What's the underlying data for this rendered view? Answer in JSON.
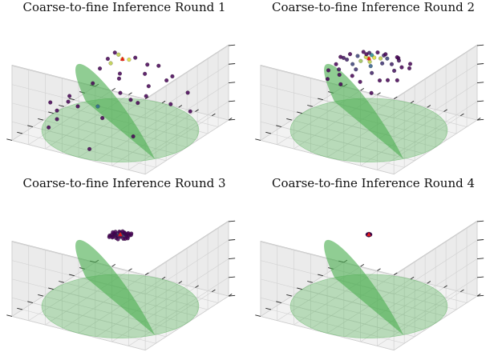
{
  "figure": {
    "colors": {
      "dome": "#4caf50",
      "low": "#440154",
      "mid": "#31688e",
      "teal": "#21918c",
      "high": "#fde725",
      "best": "#e31a1c"
    }
  },
  "chart_data": [
    {
      "type": "scatter",
      "title": "Coarse-to-fine Inference Round 1",
      "surface": "hemisphere",
      "grid": true,
      "points": [
        [
          -0.55,
          0.5,
          0.75,
          0.0
        ],
        [
          -0.2,
          0.55,
          0.82,
          0.0
        ],
        [
          0.15,
          0.6,
          0.78,
          0.0
        ],
        [
          0.45,
          0.5,
          0.7,
          0.0
        ],
        [
          0.6,
          0.2,
          0.72,
          0.0
        ],
        [
          0.55,
          -0.35,
          0.5,
          0.0
        ],
        [
          0.3,
          -0.6,
          0.4,
          0.0
        ],
        [
          -0.1,
          -0.7,
          0.35,
          0.0
        ],
        [
          -0.45,
          -0.5,
          0.45,
          0.0
        ],
        [
          -0.7,
          -0.2,
          0.55,
          0.0
        ],
        [
          -0.75,
          0.2,
          0.5,
          0.0
        ],
        [
          -0.35,
          0.2,
          0.9,
          0.0
        ],
        [
          0.25,
          0.25,
          0.88,
          0.0
        ],
        [
          0.1,
          -0.25,
          0.9,
          0.0
        ],
        [
          -0.25,
          -0.15,
          0.92,
          0.0
        ],
        [
          0.7,
          -0.05,
          0.2,
          0.0
        ],
        [
          0.4,
          0.8,
          0.3,
          0.0
        ],
        [
          -0.9,
          0.1,
          0.1,
          0.0
        ],
        [
          0.0,
          -0.95,
          0.05,
          0.0
        ],
        [
          -0.6,
          -0.7,
          0.1,
          0.0
        ],
        [
          0.8,
          -0.5,
          0.1,
          0.0
        ],
        [
          0.2,
          0.1,
          0.96,
          0.0
        ],
        [
          -0.05,
          0.4,
          0.9,
          0.0
        ],
        [
          0.05,
          0.1,
          0.99,
          0.95
        ],
        [
          -0.15,
          -0.05,
          0.98,
          0.9
        ],
        [
          0.15,
          -0.12,
          0.97,
          0.9
        ],
        [
          0.02,
          0.02,
          0.99,
          1.0
        ],
        [
          -0.3,
          0.45,
          0.6,
          0.0
        ],
        [
          0.35,
          -0.3,
          0.88,
          0.0
        ],
        [
          -0.65,
          0.6,
          0.3,
          0.0
        ],
        [
          0.5,
          0.7,
          0.5,
          0.0
        ],
        [
          -0.8,
          -0.45,
          0.35,
          0.0
        ],
        [
          0.1,
          -0.4,
          0.2,
          0.35
        ],
        [
          0.65,
          0.35,
          0.2,
          0.0
        ],
        [
          -0.4,
          -0.8,
          0.35,
          0.0
        ]
      ]
    },
    {
      "type": "scatter",
      "title": "Coarse-to-fine Inference Round 2",
      "surface": "hemisphere",
      "grid": true,
      "points": [
        [
          0.0,
          0.0,
          1.0,
          1.0
        ],
        [
          0.08,
          0.03,
          0.99,
          0.95
        ],
        [
          -0.06,
          0.05,
          0.99,
          0.9
        ],
        [
          0.04,
          -0.07,
          0.99,
          0.92
        ],
        [
          0.12,
          0.1,
          0.98,
          0.9
        ],
        [
          -0.1,
          -0.06,
          0.99,
          0.85
        ],
        [
          0.15,
          -0.05,
          0.98,
          0.6
        ],
        [
          -0.15,
          0.12,
          0.98,
          0.3
        ],
        [
          0.2,
          0.15,
          0.96,
          0.2
        ],
        [
          -0.2,
          -0.12,
          0.97,
          0.2
        ],
        [
          0.0,
          0.2,
          0.98,
          0.15
        ],
        [
          0.05,
          -0.2,
          0.97,
          0.2
        ],
        [
          0.25,
          -0.15,
          0.95,
          0.1
        ],
        [
          -0.25,
          0.2,
          0.94,
          0.1
        ],
        [
          0.28,
          0.05,
          0.95,
          0.1
        ],
        [
          -0.28,
          -0.02,
          0.95,
          0.15
        ],
        [
          0.1,
          0.28,
          0.95,
          0.1
        ],
        [
          -0.08,
          -0.28,
          0.95,
          0.1
        ],
        [
          0.32,
          0.25,
          0.91,
          0.05
        ],
        [
          -0.32,
          -0.25,
          0.91,
          0.05
        ],
        [
          0.35,
          -0.3,
          0.89,
          0.0
        ],
        [
          -0.3,
          0.35,
          0.89,
          0.0
        ],
        [
          0.0,
          0.38,
          0.92,
          0.05
        ],
        [
          0.0,
          -0.38,
          0.92,
          0.05
        ],
        [
          0.4,
          0.0,
          0.91,
          0.0
        ],
        [
          -0.4,
          0.0,
          0.91,
          0.0
        ],
        [
          0.18,
          0.38,
          0.9,
          0.0
        ],
        [
          -0.18,
          -0.38,
          0.9,
          0.0
        ],
        [
          0.42,
          0.18,
          0.89,
          0.0
        ],
        [
          -0.42,
          -0.18,
          0.89,
          0.0
        ],
        [
          0.22,
          -0.42,
          0.88,
          0.0
        ],
        [
          -0.22,
          0.42,
          0.88,
          0.0
        ],
        [
          0.45,
          -0.15,
          0.88,
          0.0
        ],
        [
          -0.45,
          0.15,
          0.88,
          0.0
        ],
        [
          0.3,
          0.42,
          0.85,
          0.0
        ],
        [
          -0.3,
          -0.42,
          0.85,
          0.0
        ],
        [
          0.48,
          0.32,
          0.82,
          0.0
        ],
        [
          -0.48,
          -0.32,
          0.82,
          0.0
        ],
        [
          0.12,
          -0.5,
          0.86,
          0.0
        ],
        [
          -0.12,
          0.5,
          0.86,
          0.0
        ],
        [
          0.5,
          -0.35,
          0.79,
          0.0
        ],
        [
          -0.5,
          0.35,
          0.79,
          0.0
        ],
        [
          0.55,
          0.08,
          0.83,
          0.0
        ],
        [
          -0.55,
          -0.08,
          0.83,
          0.0
        ]
      ]
    },
    {
      "type": "scatter",
      "title": "Coarse-to-fine Inference Round 3",
      "surface": "hemisphere",
      "grid": true,
      "points": [
        [
          0.0,
          0.0,
          1.0,
          1.0
        ],
        [
          0.02,
          0.01,
          1.0,
          0.95
        ],
        [
          -0.02,
          0.02,
          1.0,
          0.9
        ],
        [
          0.01,
          -0.02,
          1.0,
          0.9
        ],
        [
          0.03,
          0.03,
          1.0,
          0.8
        ],
        [
          -0.03,
          -0.02,
          1.0,
          0.8
        ],
        [
          0.04,
          -0.01,
          1.0,
          0.3
        ],
        [
          -0.04,
          0.03,
          1.0,
          0.2
        ],
        [
          0.05,
          0.04,
          1.0,
          0.1
        ],
        [
          -0.05,
          -0.04,
          1.0,
          0.1
        ],
        [
          0.0,
          0.05,
          1.0,
          0.15
        ],
        [
          0.0,
          -0.05,
          1.0,
          0.15
        ],
        [
          0.06,
          -0.04,
          1.0,
          0.05
        ],
        [
          -0.06,
          0.04,
          1.0,
          0.05
        ],
        [
          0.07,
          0.01,
          1.0,
          0.0
        ],
        [
          -0.07,
          0.0,
          1.0,
          0.05
        ],
        [
          0.03,
          0.07,
          1.0,
          0.0
        ],
        [
          -0.02,
          -0.07,
          1.0,
          0.0
        ],
        [
          0.08,
          0.06,
          0.99,
          0.0
        ],
        [
          -0.08,
          -0.06,
          0.99,
          0.0
        ],
        [
          0.09,
          -0.07,
          0.99,
          0.0
        ],
        [
          -0.07,
          0.09,
          0.99,
          0.0
        ],
        [
          0.0,
          0.1,
          0.99,
          0.0
        ],
        [
          0.0,
          -0.1,
          0.99,
          0.0
        ],
        [
          0.1,
          0.0,
          0.99,
          0.0
        ],
        [
          -0.1,
          0.0,
          0.99,
          0.0
        ],
        [
          0.05,
          0.1,
          0.99,
          0.0
        ],
        [
          -0.05,
          -0.1,
          0.99,
          0.0
        ],
        [
          0.11,
          0.05,
          0.99,
          0.0
        ],
        [
          -0.11,
          -0.05,
          0.99,
          0.0
        ],
        [
          0.06,
          -0.11,
          0.99,
          0.0
        ],
        [
          -0.06,
          0.11,
          0.99,
          0.0
        ],
        [
          0.12,
          -0.04,
          0.99,
          0.0
        ],
        [
          -0.12,
          0.04,
          0.99,
          0.0
        ],
        [
          0.08,
          0.11,
          0.99,
          0.0
        ],
        [
          -0.08,
          -0.11,
          0.99,
          0.0
        ],
        [
          0.12,
          0.09,
          0.99,
          0.0
        ],
        [
          -0.12,
          -0.09,
          0.99,
          0.0
        ],
        [
          0.03,
          -0.13,
          0.99,
          0.0
        ],
        [
          -0.03,
          0.13,
          0.99,
          0.0
        ]
      ]
    },
    {
      "type": "scatter",
      "title": "Coarse-to-fine Inference Round 4",
      "surface": "hemisphere",
      "grid": true,
      "points": [
        [
          0.0,
          0.0,
          1.0,
          1.0
        ],
        [
          0.005,
          0.003,
          1.0,
          0.9
        ],
        [
          -0.005,
          0.004,
          1.0,
          0.8
        ],
        [
          0.01,
          0.01,
          1.0,
          0.1
        ],
        [
          -0.01,
          -0.008,
          1.0,
          0.05
        ],
        [
          0.012,
          -0.01,
          1.0,
          0.0
        ],
        [
          -0.012,
          0.01,
          1.0,
          0.0
        ],
        [
          0.0,
          0.014,
          1.0,
          0.0
        ],
        [
          0.0,
          -0.014,
          1.0,
          0.0
        ],
        [
          0.016,
          0.004,
          1.0,
          0.0
        ],
        [
          -0.016,
          -0.004,
          1.0,
          0.0
        ],
        [
          0.008,
          0.016,
          1.0,
          0.0
        ],
        [
          -0.008,
          -0.016,
          1.0,
          0.0
        ],
        [
          0.018,
          -0.01,
          1.0,
          0.0
        ],
        [
          -0.018,
          0.01,
          1.0,
          0.0
        ]
      ]
    }
  ]
}
